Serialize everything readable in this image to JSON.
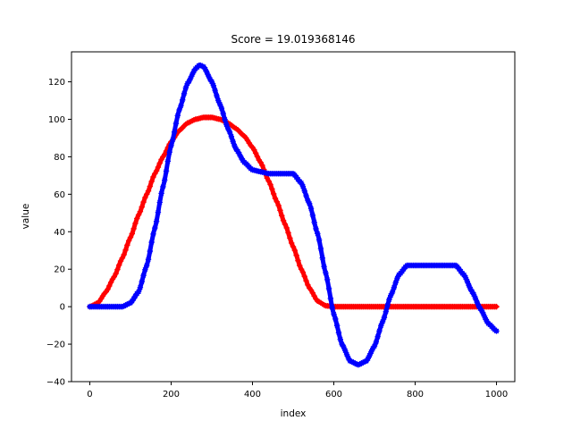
{
  "chart_data": {
    "type": "scatter",
    "title": "Score = 19.019368146",
    "xlabel": "index",
    "ylabel": "value",
    "xlim": [
      -45,
      1045
    ],
    "ylim": [
      -40,
      136
    ],
    "xticks": [
      0,
      200,
      400,
      600,
      800,
      1000
    ],
    "yticks": [
      -40,
      -20,
      0,
      20,
      40,
      60,
      80,
      100,
      120
    ],
    "grid": false,
    "series": [
      {
        "color": "#ff0000",
        "marker": "plus",
        "x": [
          0,
          20,
          40,
          60,
          80,
          100,
          120,
          140,
          160,
          180,
          200,
          220,
          240,
          260,
          280,
          300,
          320,
          340,
          360,
          380,
          400,
          420,
          440,
          460,
          480,
          500,
          520,
          540,
          560,
          580,
          600,
          620,
          640,
          660,
          680,
          700,
          720,
          740,
          760,
          780,
          800,
          820,
          840,
          860,
          880,
          900,
          920,
          940,
          960,
          980,
          1000
        ],
        "values": [
          0,
          2,
          8,
          16,
          26,
          37,
          49,
          60,
          71,
          80,
          88,
          94,
          98,
          100,
          101,
          101,
          100,
          98,
          95,
          91,
          85,
          77,
          67,
          56,
          44,
          32,
          20,
          10,
          3,
          0.5,
          0,
          0,
          0,
          0,
          0,
          0,
          0,
          0,
          0,
          0,
          0,
          0,
          0,
          0,
          0,
          0,
          0,
          0,
          0,
          0,
          0
        ]
      },
      {
        "color": "#0000ff",
        "marker": "star",
        "x": [
          0,
          20,
          40,
          60,
          80,
          100,
          120,
          140,
          160,
          180,
          200,
          220,
          240,
          260,
          270,
          280,
          300,
          320,
          340,
          360,
          380,
          400,
          420,
          440,
          460,
          480,
          500,
          520,
          540,
          560,
          580,
          600,
          620,
          640,
          660,
          680,
          700,
          720,
          740,
          760,
          780,
          800,
          820,
          840,
          860,
          880,
          900,
          920,
          940,
          960,
          980,
          1000
        ],
        "values": [
          0,
          0,
          0,
          0,
          0,
          2,
          8,
          22,
          42,
          64,
          86,
          105,
          119,
          127,
          129,
          128,
          120,
          108,
          95,
          84,
          77,
          73,
          72,
          71,
          71,
          71,
          71,
          66,
          55,
          39,
          18,
          -4,
          -20,
          -29,
          -31,
          -29,
          -21,
          -8,
          6,
          17,
          22,
          22,
          22,
          22,
          22,
          22,
          22,
          17,
          8,
          -1,
          -9,
          -13
        ]
      }
    ]
  }
}
